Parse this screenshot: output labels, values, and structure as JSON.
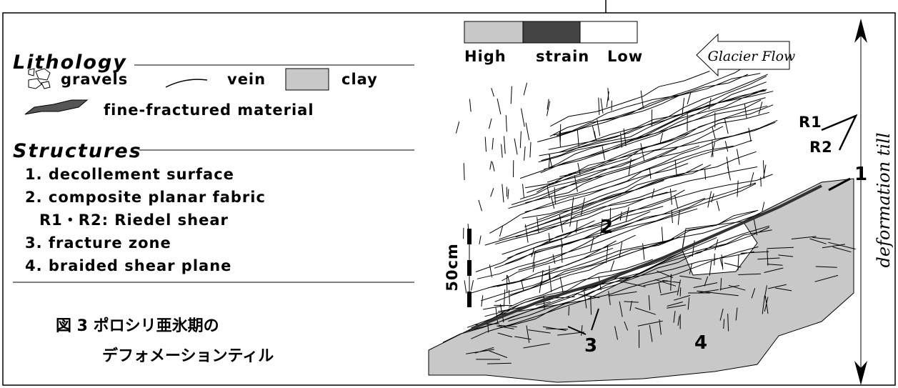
{
  "legend": {
    "lithology": {
      "title": "Lithology",
      "items": [
        "gravels",
        "vein",
        "clay",
        "fine-fractured material"
      ]
    },
    "structures": {
      "title": "Structures",
      "items": [
        "1. decollement surface",
        "2. composite planar fabric",
        "R1・R2: Riedel shear",
        "3. fracture zone",
        "4. braided shear plane"
      ]
    }
  },
  "caption": [
    "図 3 ポロシリ亜氷期の",
    "デフォメーションティル"
  ],
  "figure": {
    "strain_scale": [
      "High",
      "strain",
      "Low"
    ],
    "arrow": "Glacier Flow",
    "shear_labels": [
      "R1",
      "R2"
    ],
    "scale_bar": "50cm",
    "side_label": "deformation till",
    "markers": [
      "1",
      "2",
      "3",
      "4"
    ]
  }
}
